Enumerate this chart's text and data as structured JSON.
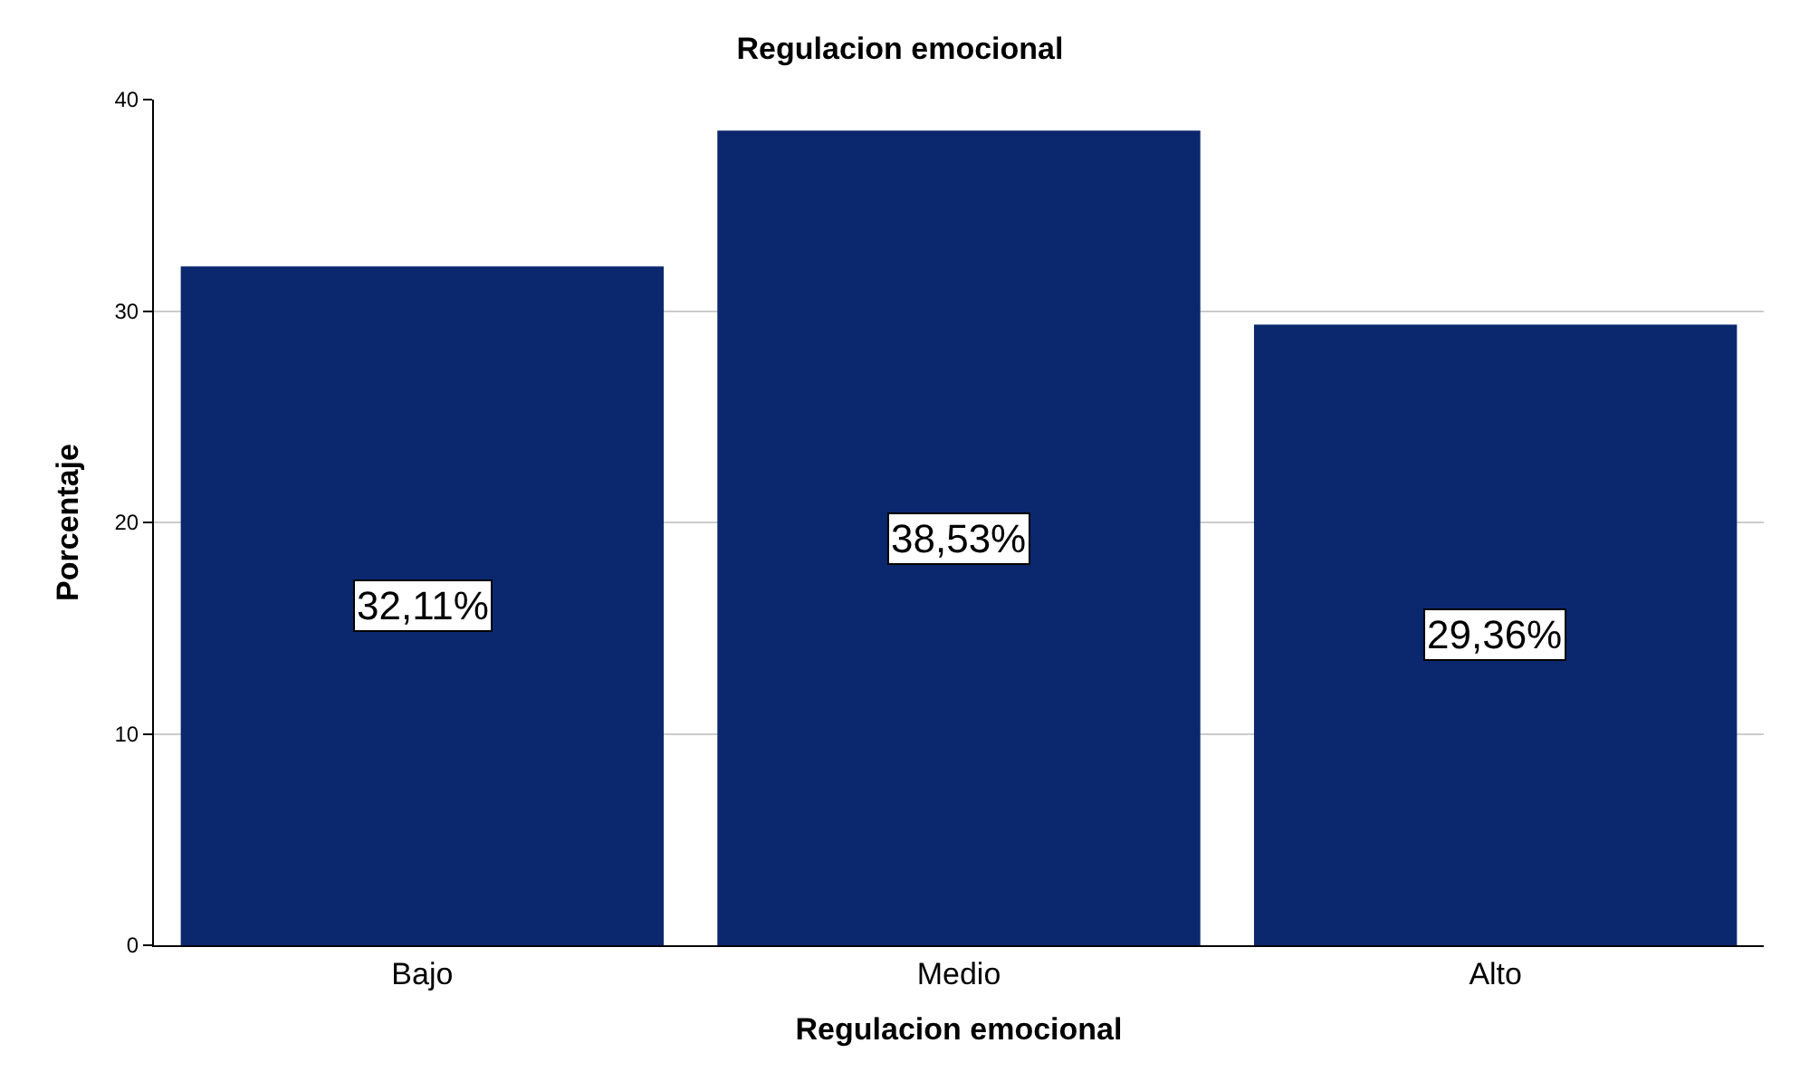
{
  "chart_data": {
    "type": "bar",
    "title": "Regulacion emocional",
    "xlabel": "Regulacion emocional",
    "ylabel": "Porcentaje",
    "categories": [
      "Bajo",
      "Medio",
      "Alto"
    ],
    "values": [
      32.11,
      38.53,
      29.36
    ],
    "value_labels": [
      "32,11%",
      "38,53%",
      "29,36%"
    ],
    "color": "#0b276e",
    "ylim": [
      0,
      40
    ],
    "yticks": [
      0,
      10,
      20,
      30,
      40
    ],
    "grid": "y",
    "legend": false
  }
}
